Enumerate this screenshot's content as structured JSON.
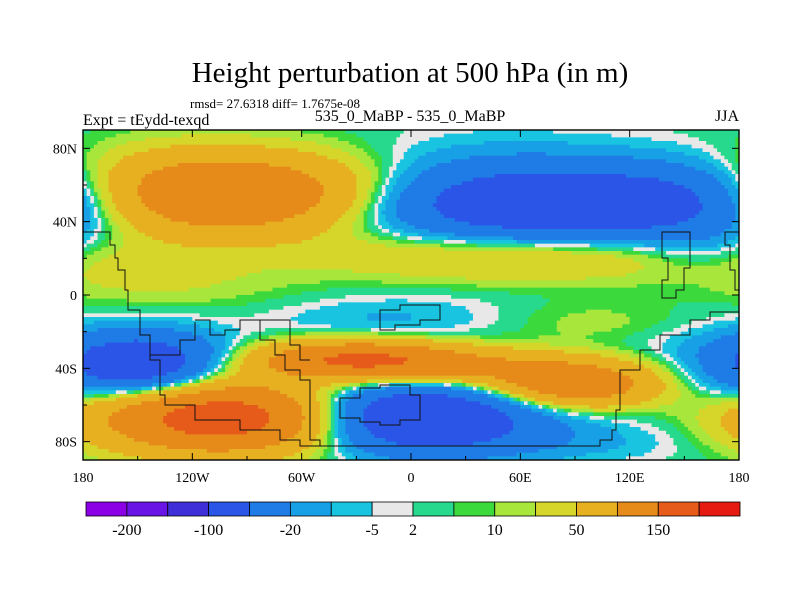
{
  "chart_data": {
    "type": "heatmap",
    "title": "Height perturbation at 500 hPa (in m)",
    "stats_line": "rmsd= 27.6318 diff= 1.7675e-08",
    "left_label": "Expt = tEydd-texqd",
    "center_label": "535_0_MaBP - 535_0_MaBP",
    "right_label": "JJA",
    "x_axis": {
      "range": [
        -180,
        180
      ],
      "ticks": [
        {
          "value": -180,
          "label": "180"
        },
        {
          "value": -120,
          "label": "120W"
        },
        {
          "value": -60,
          "label": "60W"
        },
        {
          "value": 0,
          "label": "0"
        },
        {
          "value": 60,
          "label": "60E"
        },
        {
          "value": 120,
          "label": "120E"
        },
        {
          "value": 180,
          "label": "180"
        }
      ]
    },
    "y_axis": {
      "range": [
        -90,
        90
      ],
      "ticks": [
        {
          "value": 80,
          "label": "80N"
        },
        {
          "value": 40,
          "label": "40N"
        },
        {
          "value": 0,
          "label": "0"
        },
        {
          "value": -40,
          "label": "40S"
        },
        {
          "value": -80,
          "label": "80S"
        }
      ]
    },
    "colorbar": {
      "colors": [
        "#8c00e6",
        "#6a14e6",
        "#3f2fd9",
        "#2a55e6",
        "#1f7be6",
        "#17a0e6",
        "#19c4e0",
        "#e8e8e8",
        "#26d98c",
        "#3cd93c",
        "#a8e63c",
        "#d6d62a",
        "#e6b020",
        "#e68a1a",
        "#e65a1a",
        "#e61a10"
      ],
      "labels": [
        {
          "text": "-200",
          "after_index": 0
        },
        {
          "text": "-100",
          "after_index": 2
        },
        {
          "text": "-20",
          "after_index": 4
        },
        {
          "text": "-5",
          "after_index": 6
        },
        {
          "text": "2",
          "after_index": 7
        },
        {
          "text": "10",
          "after_index": 9
        },
        {
          "text": "50",
          "after_index": 11
        },
        {
          "text": "150",
          "after_index": 13
        }
      ]
    },
    "field_features": [
      {
        "lon": -90,
        "lat": 55,
        "value": 90,
        "sx": 55,
        "sy": 15
      },
      {
        "lon": -140,
        "lat": 55,
        "value": 25,
        "sx": 40,
        "sy": 16
      },
      {
        "lon": 40,
        "lat": 60,
        "value": -20,
        "sx": 60,
        "sy": 17
      },
      {
        "lon": 80,
        "lat": 48,
        "value": -80,
        "sx": 70,
        "sy": 14
      },
      {
        "lon": 160,
        "lat": 55,
        "value": -25,
        "sx": 40,
        "sy": 14
      },
      {
        "lon": 60,
        "lat": 22,
        "value": 30,
        "sx": 75,
        "sy": 10
      },
      {
        "lon": 160,
        "lat": 25,
        "value": -12,
        "sx": 25,
        "sy": 12
      },
      {
        "lon": -150,
        "lat": 12,
        "value": 12,
        "sx": 45,
        "sy": 10
      },
      {
        "lon": -100,
        "lat": -2,
        "value": 4,
        "sx": 60,
        "sy": 10
      },
      {
        "lon": -15,
        "lat": -13,
        "value": -12,
        "sx": 50,
        "sy": 10
      },
      {
        "lon": 100,
        "lat": -15,
        "value": 8,
        "sx": 40,
        "sy": 8
      },
      {
        "lon": -150,
        "lat": -38,
        "value": -90,
        "sx": 30,
        "sy": 12
      },
      {
        "lon": -100,
        "lat": -32,
        "value": -6,
        "sx": 22,
        "sy": 6
      },
      {
        "lon": -30,
        "lat": -35,
        "value": 100,
        "sx": 40,
        "sy": 7
      },
      {
        "lon": 40,
        "lat": -40,
        "value": 45,
        "sx": 55,
        "sy": 7
      },
      {
        "lon": 90,
        "lat": -50,
        "value": 80,
        "sx": 32,
        "sy": 8
      },
      {
        "lon": -100,
        "lat": -67,
        "value": 140,
        "sx": 48,
        "sy": 13
      },
      {
        "lon": 0,
        "lat": -67,
        "value": -110,
        "sx": 45,
        "sy": 13
      },
      {
        "lon": 90,
        "lat": -80,
        "value": -10,
        "sx": 50,
        "sy": 8
      },
      {
        "lon": 150,
        "lat": -40,
        "value": -8,
        "sx": 30,
        "sy": 18
      }
    ]
  }
}
